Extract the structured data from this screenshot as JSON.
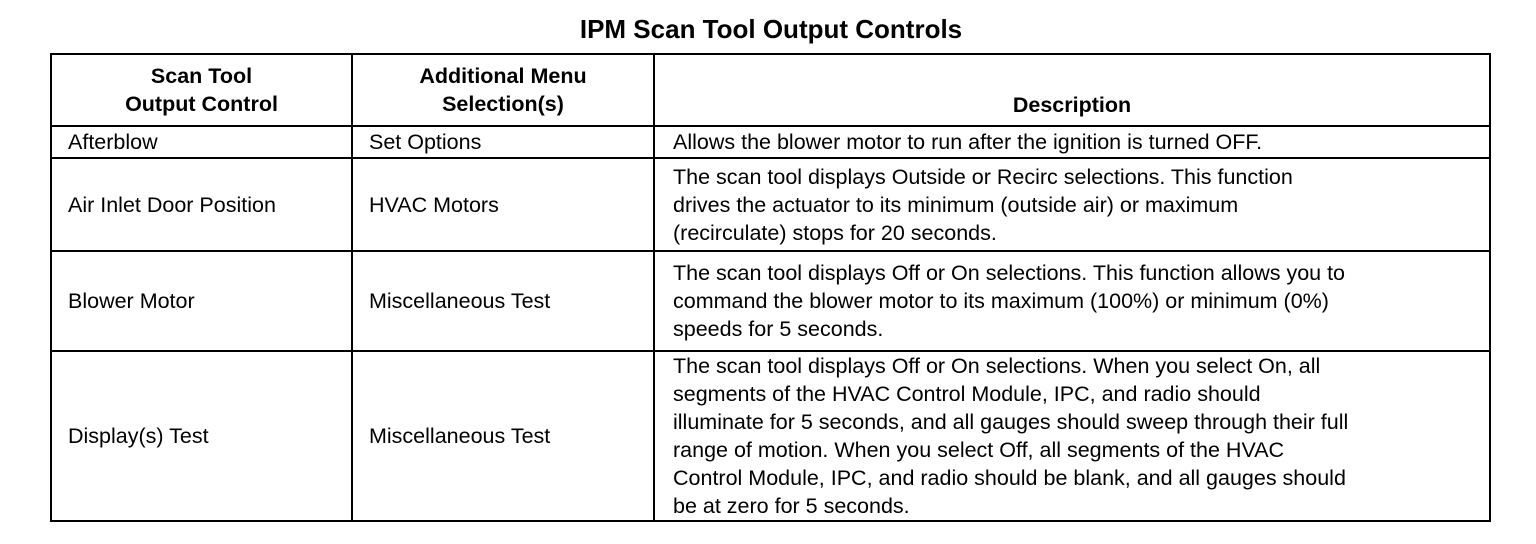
{
  "title": "IPM Scan Tool Output Controls",
  "headers": {
    "col1": [
      "Scan Tool",
      "Output Control"
    ],
    "col2": [
      "Additional Menu",
      "Selection(s)"
    ],
    "col3": "Description"
  },
  "rows": [
    {
      "control": "Afterblow",
      "menu": "Set Options",
      "description": [
        "Allows the blower motor to run after the ignition is turned OFF."
      ]
    },
    {
      "control": "Air Inlet Door Position",
      "menu": "HVAC Motors",
      "description": [
        "The scan tool displays Outside or Recirc selections. This function",
        "drives the actuator to its minimum (outside air) or maximum",
        "(recirculate) stops for 20 seconds."
      ]
    },
    {
      "control": "Blower Motor",
      "menu": "Miscellaneous Test",
      "description": [
        "The scan tool displays Off or On selections. This function allows you to",
        "command the blower motor to its maximum (100%) or minimum (0%)",
        "speeds for 5 seconds."
      ]
    },
    {
      "control": "Display(s) Test",
      "menu": "Miscellaneous Test",
      "description": [
        "The scan tool displays Off or On selections. When you select On, all",
        "segments of the HVAC Control Module, IPC, and radio should",
        "illuminate for 5 seconds, and all gauges should sweep through their full",
        "range of motion. When you select Off, all segments of the HVAC",
        "Control Module, IPC, and radio should be blank, and all gauges should",
        "be at zero for 5 seconds."
      ]
    }
  ]
}
